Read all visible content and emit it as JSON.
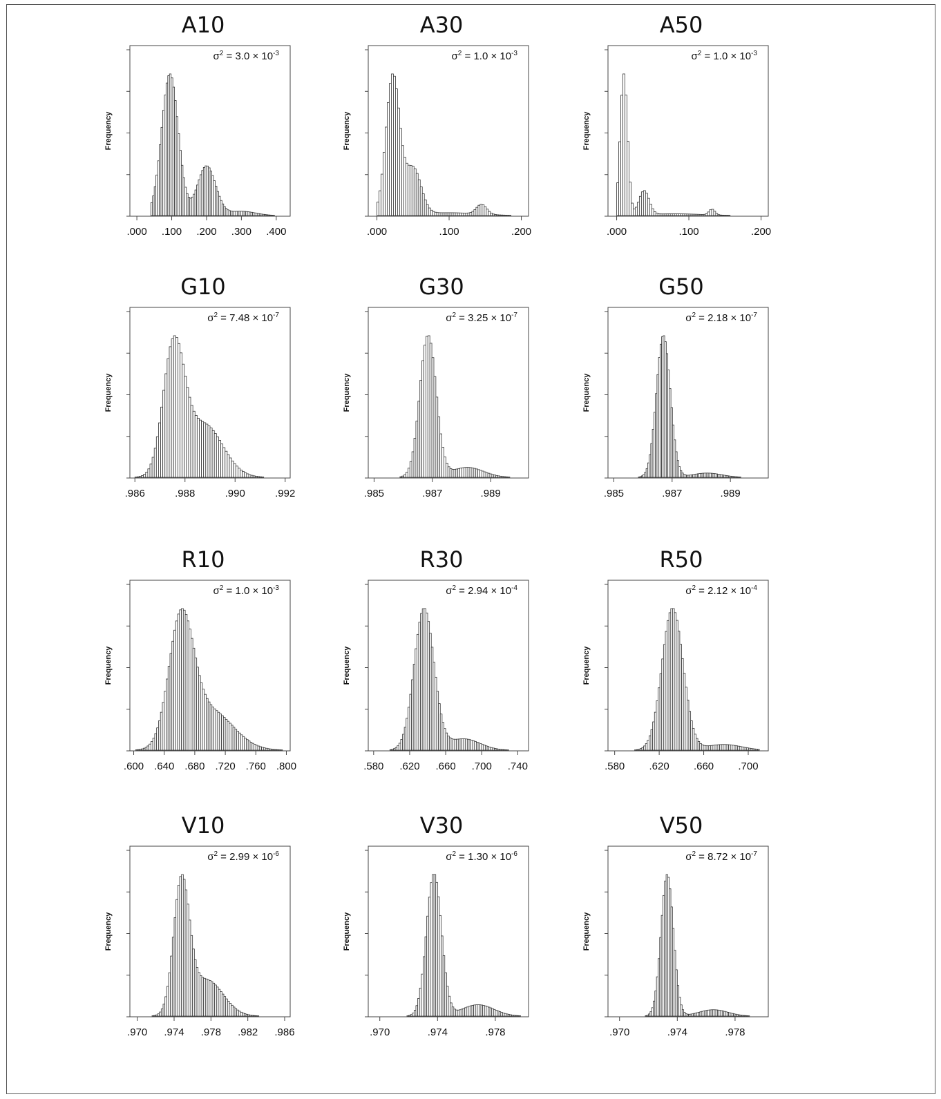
{
  "figure": {
    "y_axis_title": "Frequency",
    "variance_symbol": "σ",
    "variance_symbol_exponent": "2"
  },
  "chart_data": [
    {
      "id": "A10",
      "type": "bar",
      "title": "A10",
      "ylabel": "Frequency",
      "xlim": [
        -0.02,
        0.44
      ],
      "xticks": [
        0,
        0.1,
        0.2,
        0.3,
        0.4
      ],
      "tick_labels": [
        ".000",
        ".100",
        ".200",
        ".300",
        ".400"
      ],
      "variance": {
        "mantissa": "3.0",
        "exponent": "-3"
      },
      "distribution": {
        "components": [
          {
            "mu": 0.095,
            "sigma": 0.024,
            "w": 1.0
          },
          {
            "mu": 0.2,
            "sigma": 0.026,
            "w": 0.35
          },
          {
            "mu": 0.3,
            "sigma": 0.04,
            "w": 0.03
          }
        ],
        "range": [
          0.04,
          0.4
        ],
        "bins": 74
      }
    },
    {
      "id": "A30",
      "type": "bar",
      "title": "A30",
      "ylabel": "Frequency",
      "xlim": [
        -0.012,
        0.21
      ],
      "xticks": [
        0,
        0.1,
        0.2
      ],
      "tick_labels": [
        ".000",
        ".100",
        ".200"
      ],
      "variance": {
        "mantissa": "1.0",
        "exponent": "-3"
      },
      "distribution": {
        "components": [
          {
            "mu": 0.022,
            "sigma": 0.0095,
            "w": 1.0
          },
          {
            "mu": 0.05,
            "sigma": 0.011,
            "w": 0.33
          },
          {
            "mu": 0.145,
            "sigma": 0.007,
            "w": 0.07
          },
          {
            "mu": 0.1,
            "sigma": 0.04,
            "w": 0.02
          }
        ],
        "range": [
          0.0,
          0.2
        ],
        "bins": 70
      }
    },
    {
      "id": "A50",
      "type": "bar",
      "title": "A50",
      "ylabel": "Frequency",
      "xlim": [
        -0.012,
        0.21
      ],
      "xticks": [
        0,
        0.1,
        0.2
      ],
      "tick_labels": [
        ".000",
        ".100",
        ".200"
      ],
      "variance": {
        "mantissa": "1.0",
        "exponent": "-3"
      },
      "distribution": {
        "components": [
          {
            "mu": 0.01,
            "sigma": 0.005,
            "w": 1.0
          },
          {
            "mu": 0.038,
            "sigma": 0.007,
            "w": 0.17
          },
          {
            "mu": 0.132,
            "sigma": 0.004,
            "w": 0.04
          },
          {
            "mu": 0.08,
            "sigma": 0.04,
            "w": 0.012
          }
        ],
        "range": [
          0.0,
          0.2
        ],
        "bins": 70
      }
    },
    {
      "id": "G10",
      "type": "bar",
      "title": "G10",
      "ylabel": "Frequency",
      "xlim": [
        0.9858,
        0.9922
      ],
      "xticks": [
        0.986,
        0.988,
        0.99,
        0.992
      ],
      "tick_labels": [
        ".986",
        ".988",
        ".990",
        ".992"
      ],
      "variance": {
        "mantissa": "7.48",
        "exponent": "-7"
      },
      "distribution": {
        "components": [
          {
            "mu": 0.98755,
            "sigma": 0.00042,
            "w": 1.0
          },
          {
            "mu": 0.98875,
            "sigma": 0.00075,
            "w": 0.42
          }
        ],
        "range": [
          0.986,
          0.992
        ],
        "bins": 70
      }
    },
    {
      "id": "G30",
      "type": "bar",
      "title": "G30",
      "ylabel": "Frequency",
      "xlim": [
        0.9848,
        0.9903
      ],
      "xticks": [
        0.985,
        0.987,
        0.989
      ],
      "tick_labels": [
        ".985",
        ".987",
        ".989"
      ],
      "variance": {
        "mantissa": "3.25",
        "exponent": "-7"
      },
      "distribution": {
        "components": [
          {
            "mu": 0.98685,
            "sigma": 0.00028,
            "w": 1.0
          },
          {
            "mu": 0.9882,
            "sigma": 0.00055,
            "w": 0.07
          }
        ],
        "range": [
          0.9852,
          0.99
        ],
        "bins": 70
      }
    },
    {
      "id": "G50",
      "type": "bar",
      "title": "G50",
      "ylabel": "Frequency",
      "xlim": [
        0.9848,
        0.9903
      ],
      "xticks": [
        0.985,
        0.987,
        0.989
      ],
      "tick_labels": [
        ".985",
        ".987",
        ".989"
      ],
      "variance": {
        "mantissa": "2.18",
        "exponent": "-7"
      },
      "distribution": {
        "components": [
          {
            "mu": 0.9867,
            "sigma": 0.00024,
            "w": 1.0
          },
          {
            "mu": 0.9882,
            "sigma": 0.0005,
            "w": 0.03
          }
        ],
        "range": [
          0.9852,
          0.99
        ],
        "bins": 90
      }
    },
    {
      "id": "R10",
      "type": "bar",
      "title": "R10",
      "ylabel": "Frequency",
      "xlim": [
        0.595,
        0.805
      ],
      "xticks": [
        0.6,
        0.64,
        0.68,
        0.72,
        0.76,
        0.8
      ],
      "tick_labels": [
        ".600",
        ".640",
        ".680",
        ".720",
        ".760",
        ".800"
      ],
      "variance": {
        "mantissa": "1.0",
        "exponent": "-3"
      },
      "distribution": {
        "components": [
          {
            "mu": 0.662,
            "sigma": 0.016,
            "w": 1.0
          },
          {
            "mu": 0.7,
            "sigma": 0.03,
            "w": 0.32
          }
        ],
        "range": [
          0.6,
          0.8
        ],
        "bins": 80
      }
    },
    {
      "id": "R30",
      "type": "bar",
      "title": "R30",
      "ylabel": "Frequency",
      "xlim": [
        0.574,
        0.752
      ],
      "xticks": [
        0.58,
        0.62,
        0.66,
        0.7,
        0.74
      ],
      "tick_labels": [
        ".580",
        ".620",
        ".660",
        ".700",
        ".740"
      ],
      "variance": {
        "mantissa": "2.94",
        "exponent": "-4"
      },
      "distribution": {
        "components": [
          {
            "mu": 0.636,
            "sigma": 0.011,
            "w": 1.0
          },
          {
            "mu": 0.68,
            "sigma": 0.018,
            "w": 0.08
          }
        ],
        "range": [
          0.58,
          0.74
        ],
        "bins": 80
      }
    },
    {
      "id": "R50",
      "type": "bar",
      "title": "R50",
      "ylabel": "Frequency",
      "xlim": [
        0.574,
        0.718
      ],
      "xticks": [
        0.58,
        0.62,
        0.66,
        0.7
      ],
      "tick_labels": [
        ".580",
        ".620",
        ".660",
        ".700"
      ],
      "variance": {
        "mantissa": "2.12",
        "exponent": "-4"
      },
      "distribution": {
        "components": [
          {
            "mu": 0.632,
            "sigma": 0.0095,
            "w": 1.0
          },
          {
            "mu": 0.678,
            "sigma": 0.016,
            "w": 0.04
          }
        ],
        "range": [
          0.58,
          0.71
        ],
        "bins": 80
      }
    },
    {
      "id": "V10",
      "type": "bar",
      "title": "V10",
      "ylabel": "Frequency",
      "xlim": [
        0.9692,
        0.9866
      ],
      "xticks": [
        0.97,
        0.974,
        0.978,
        0.982,
        0.986
      ],
      "tick_labels": [
        ".970",
        ".974",
        ".978",
        ".982",
        ".986"
      ],
      "variance": {
        "mantissa": "2.99",
        "exponent": "-6"
      },
      "distribution": {
        "components": [
          {
            "mu": 0.9748,
            "sigma": 0.00085,
            "w": 1.0
          },
          {
            "mu": 0.9775,
            "sigma": 0.0018,
            "w": 0.28
          }
        ],
        "range": [
          0.97,
          0.986
        ],
        "bins": 80
      }
    },
    {
      "id": "V30",
      "type": "bar",
      "title": "V30",
      "ylabel": "Frequency",
      "xlim": [
        0.9692,
        0.9803
      ],
      "xticks": [
        0.97,
        0.974,
        0.978
      ],
      "tick_labels": [
        ".970",
        ".974",
        ".978"
      ],
      "variance": {
        "mantissa": "1.30",
        "exponent": "-6"
      },
      "distribution": {
        "components": [
          {
            "mu": 0.97375,
            "sigma": 0.00052,
            "w": 1.0
          },
          {
            "mu": 0.9768,
            "sigma": 0.0011,
            "w": 0.08
          }
        ],
        "range": [
          0.97,
          0.98
        ],
        "bins": 80
      }
    },
    {
      "id": "V50",
      "type": "bar",
      "title": "V50",
      "ylabel": "Frequency",
      "xlim": [
        0.9692,
        0.9803
      ],
      "xticks": [
        0.97,
        0.974,
        0.978
      ],
      "tick_labels": [
        ".970",
        ".974",
        ".978"
      ],
      "variance": {
        "mantissa": "8.72",
        "exponent": "-7"
      },
      "distribution": {
        "components": [
          {
            "mu": 0.9733,
            "sigma": 0.00043,
            "w": 1.0
          },
          {
            "mu": 0.9765,
            "sigma": 0.001,
            "w": 0.045
          }
        ],
        "range": [
          0.97,
          0.98
        ],
        "bins": 90
      }
    }
  ]
}
